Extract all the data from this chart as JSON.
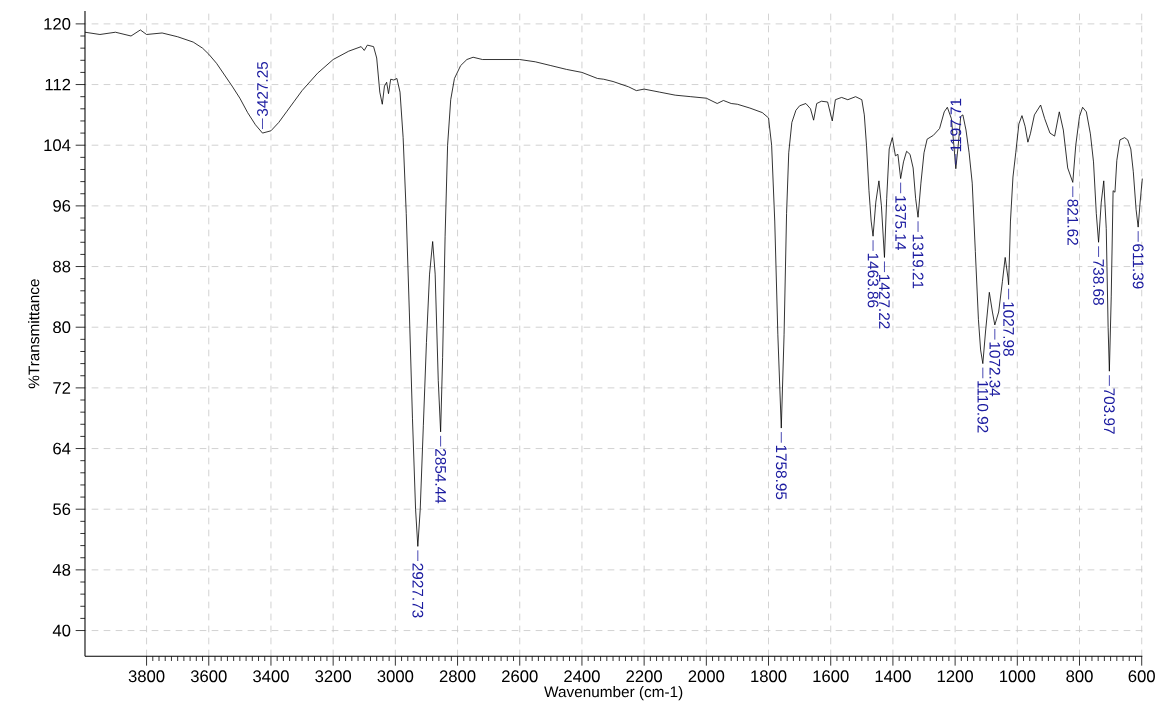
{
  "chart_data": {
    "type": "line",
    "xlabel": "Wavenumber (cm-1)",
    "ylabel": "%Transmittance",
    "xlim": [
      3998,
      598
    ],
    "ylim": [
      36.6,
      121.7
    ],
    "xticks": [
      3800,
      3600,
      3400,
      3200,
      3000,
      2800,
      2600,
      2400,
      2200,
      2000,
      1800,
      1600,
      1400,
      1200,
      1000,
      800,
      600
    ],
    "yticks": [
      40,
      48,
      56,
      64,
      72,
      80,
      88,
      96,
      104,
      112,
      120
    ],
    "grid": true,
    "series": [
      {
        "color": "#000000",
        "x": [
          3998,
          3950,
          3900,
          3850,
          3820,
          3800,
          3750,
          3700,
          3650,
          3620,
          3600,
          3575,
          3550,
          3525,
          3500,
          3475,
          3450,
          3427.25,
          3400,
          3375,
          3350,
          3325,
          3300,
          3250,
          3200,
          3150,
          3110,
          3100,
          3090,
          3070,
          3060,
          3050,
          3042,
          3035,
          3028,
          3022,
          3015,
          3005,
          2995,
          2985,
          2975,
          2965,
          2955,
          2945,
          2935,
          2927.73,
          2920,
          2910,
          2900,
          2890,
          2880,
          2872,
          2862,
          2854.44,
          2848,
          2840,
          2832,
          2822,
          2810,
          2790,
          2770,
          2750,
          2720,
          2700,
          2650,
          2600,
          2550,
          2500,
          2450,
          2400,
          2350,
          2330,
          2300,
          2250,
          2225,
          2200,
          2150,
          2100,
          2050,
          2000,
          1965,
          1945,
          1920,
          1900,
          1860,
          1820,
          1800,
          1790,
          1780,
          1770,
          1758.95,
          1750,
          1742,
          1735,
          1725,
          1712,
          1700,
          1680,
          1665,
          1655,
          1645,
          1630,
          1610,
          1595,
          1585,
          1565,
          1545,
          1520,
          1500,
          1492,
          1485,
          1477,
          1470,
          1463.86,
          1455,
          1445,
          1437,
          1427.22,
          1420,
          1412,
          1402,
          1392,
          1384,
          1375.14,
          1366,
          1356,
          1345,
          1335,
          1327,
          1319.21,
          1310,
          1300,
          1290,
          1270,
          1250,
          1235,
          1225,
          1212,
          1204,
          1197.71,
          1190,
          1182,
          1175,
          1165,
          1155,
          1145,
          1135,
          1125,
          1118,
          1110.92,
          1102,
          1090,
          1080,
          1072.34,
          1060,
          1048,
          1039,
          1030,
          1027.98,
          1022,
          1014,
          1005,
          995,
          985,
          975,
          966,
          958,
          945,
          925,
          912,
          895,
          880,
          865,
          852,
          838,
          821.62,
          812,
          800,
          790,
          778,
          765,
          755,
          746,
          738.68,
          730,
          722,
          714,
          708,
          703.97,
          698,
          692,
          686,
          680,
          670,
          655,
          645,
          635,
          627,
          618,
          611.39,
          605,
          598
        ],
        "values": [
          118.9,
          118.6,
          118.9,
          118.4,
          119.2,
          118.6,
          118.8,
          118.3,
          117.6,
          116.8,
          116.0,
          114.8,
          113.3,
          111.8,
          110.2,
          108.3,
          106.7,
          105.6,
          105.9,
          107.0,
          108.4,
          109.8,
          111.2,
          113.5,
          115.3,
          116.4,
          117.0,
          116.5,
          117.2,
          117.0,
          115.5,
          111.0,
          109.4,
          111.8,
          112.3,
          110.8,
          112.7,
          112.6,
          112.8,
          111.0,
          105.0,
          95.0,
          82.0,
          68.0,
          56.0,
          51.1,
          56.0,
          67.0,
          78.0,
          87.0,
          91.3,
          87.0,
          73.0,
          66.2,
          76.0,
          92.0,
          104.0,
          110.0,
          112.8,
          114.5,
          115.3,
          115.6,
          115.3,
          115.3,
          115.3,
          115.3,
          115.0,
          114.5,
          114.0,
          113.6,
          112.8,
          112.7,
          112.4,
          111.7,
          111.2,
          111.4,
          111.0,
          110.6,
          110.4,
          110.2,
          109.5,
          109.9,
          109.5,
          109.4,
          108.9,
          108.3,
          107.6,
          104.0,
          94.0,
          79.0,
          66.7,
          79.0,
          95.0,
          103.0,
          107.0,
          108.6,
          109.2,
          109.5,
          108.8,
          107.3,
          109.5,
          109.8,
          109.7,
          107.2,
          110.0,
          110.3,
          110.0,
          110.4,
          110.0,
          108.0,
          104.0,
          98.0,
          94.0,
          92.0,
          96.5,
          99.3,
          96.0,
          89.2,
          97.0,
          103.5,
          105.0,
          102.6,
          102.8,
          99.6,
          101.8,
          103.2,
          102.8,
          101.0,
          97.0,
          94.5,
          99.0,
          103.0,
          104.8,
          105.3,
          106.2,
          108.4,
          109.0,
          107.5,
          104.0,
          100.9,
          104.0,
          107.8,
          108.0,
          106.0,
          103.0,
          99.0,
          90.0,
          81.0,
          77.0,
          75.2,
          79.5,
          84.6,
          82.0,
          80.3,
          82.0,
          86.0,
          89.2,
          86.5,
          85.6,
          94.0,
          99.8,
          103.0,
          106.8,
          107.9,
          106.5,
          104.4,
          105.5,
          108.0,
          109.3,
          107.5,
          105.6,
          105.2,
          108.4,
          106.0,
          101.0,
          99.1,
          104.0,
          107.8,
          109.0,
          108.4,
          105.5,
          101.8,
          95.0,
          91.2,
          96.5,
          99.3,
          93.0,
          80.0,
          74.2,
          84.0,
          98.0,
          97.8,
          102.0,
          104.7,
          105.0,
          104.7,
          103.5,
          100.5,
          95.5,
          93.2,
          96.5,
          99.6
        ]
      }
    ],
    "annotations": [
      {
        "text": "3427.25",
        "x": 3427.25,
        "y": 105.6
      },
      {
        "text": "2927.73",
        "x": 2927.73,
        "y": 51.1
      },
      {
        "text": "2854.44",
        "x": 2854.44,
        "y": 66.2
      },
      {
        "text": "1758.95",
        "x": 1758.95,
        "y": 66.7
      },
      {
        "text": "1463.86",
        "x": 1463.86,
        "y": 92.0
      },
      {
        "text": "1427.22",
        "x": 1427.22,
        "y": 89.2
      },
      {
        "text": "1375.14",
        "x": 1375.14,
        "y": 99.6
      },
      {
        "text": "1319.21",
        "x": 1319.21,
        "y": 94.5
      },
      {
        "text": "1197.71",
        "x": 1197.71,
        "y": 100.9
      },
      {
        "text": "1110.92",
        "x": 1110.92,
        "y": 75.2
      },
      {
        "text": "1072.34",
        "x": 1072.34,
        "y": 80.3
      },
      {
        "text": "1027.98",
        "x": 1027.98,
        "y": 85.6
      },
      {
        "text": "821.62",
        "x": 821.62,
        "y": 99.1
      },
      {
        "text": "738.68",
        "x": 738.68,
        "y": 91.2
      },
      {
        "text": "703.97",
        "x": 703.97,
        "y": 74.2
      },
      {
        "text": "611.39",
        "x": 611.39,
        "y": 93.2
      }
    ]
  }
}
